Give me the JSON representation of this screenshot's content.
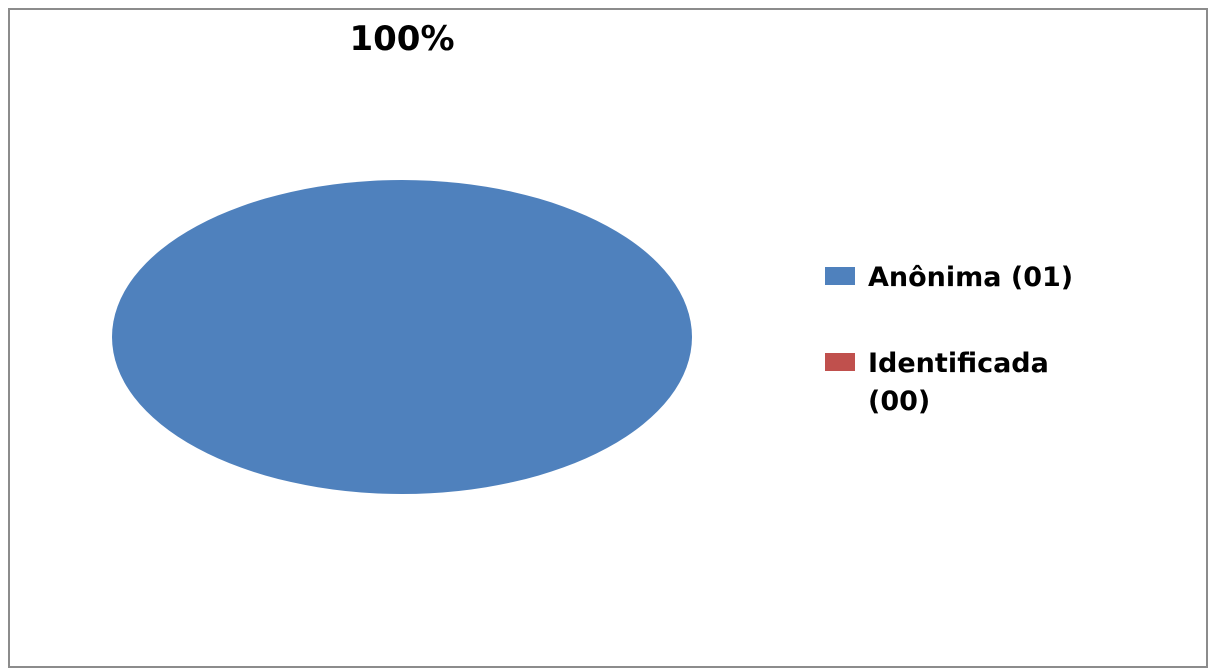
{
  "chart_data": {
    "type": "pie",
    "title": "",
    "categories": [
      "Anônima (01)",
      "Identificada (00)"
    ],
    "values": [
      1,
      0
    ],
    "colors": [
      "#4f81bd",
      "#c0504d"
    ],
    "data_labels": [
      "100%"
    ],
    "legend": {
      "placement": "right",
      "entries": [
        {
          "label_lines": [
            "Anônima (01)"
          ],
          "color": "#4f81bd"
        },
        {
          "label_lines": [
            "Identificada",
            "(00)"
          ],
          "color": "#c0504d"
        }
      ]
    }
  }
}
